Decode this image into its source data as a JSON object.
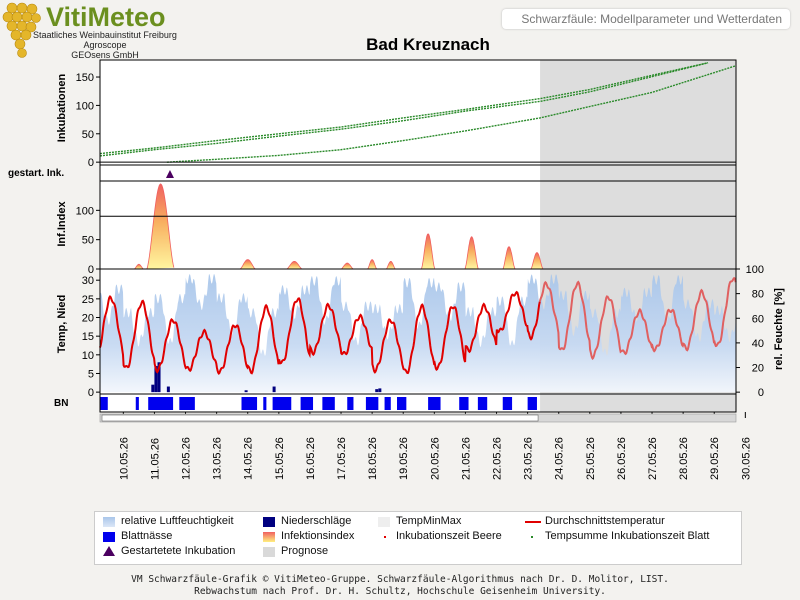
{
  "header": {
    "brand": "VitiMeteo",
    "org_lines": [
      "Staatliches Weinbauinstitut Freiburg",
      "Agroscope",
      "GEOsens GmbH"
    ],
    "subtitle": "Schwarzfäule: Modellparameter und Wetterdaten",
    "title": "Bad Kreuznach"
  },
  "footer": {
    "line1": "VM Schwarzfäule-Grafik © VitiMeteo-Gruppe. Schwarzfäule-Algorithmus nach Dr. D. Molitor, LIST.",
    "line2": "Rebwachstum nach Prof. Dr. H. Schultz, Hochschule Geisenheim University."
  },
  "colors": {
    "humidity": "#a9c6ea",
    "rain": "#000080",
    "temp": "#e00000",
    "temp_forecast": "#e06060",
    "incubation": "#2a8a2a",
    "leafwet": "#0000ee",
    "infection_top": "#f06060",
    "infection_bottom": "#fff080",
    "forecast": "#d9d9d9",
    "marker": "#4b0060"
  },
  "legend": [
    {
      "label": "relative Luftfeuchtigkeit",
      "icon": "humidity-swatch"
    },
    {
      "label": "Niederschläge",
      "icon": "rain-swatch"
    },
    {
      "label": "TempMinMax",
      "icon": "tempminmax-swatch"
    },
    {
      "label": "Durchschnittstemperatur",
      "icon": "temp-line"
    },
    {
      "label": "Blattnässe",
      "icon": "leafwet-swatch"
    },
    {
      "label": "Infektionsindex",
      "icon": "infection-swatch"
    },
    {
      "label": "Inkubationszeit Beere",
      "icon": "dot-red"
    },
    {
      "label": "Tempsumme Inkubationszeit Blatt",
      "icon": "dot-green"
    },
    {
      "label": "Gestartetete Inkubation",
      "icon": "triangle-marker"
    },
    {
      "label": "Prognose",
      "icon": "forecast-swatch"
    }
  ],
  "chart_data": {
    "type": "line",
    "dates": [
      "10.05.26",
      "11.05.26",
      "12.05.26",
      "13.05.26",
      "14.05.26",
      "15.05.26",
      "16.05.26",
      "17.05.26",
      "18.05.26",
      "19.05.26",
      "20.05.26",
      "21.05.26",
      "22.05.26",
      "23.05.26",
      "24.05.26",
      "25.05.26",
      "26.05.26",
      "27.05.26",
      "28.05.26",
      "29.05.26",
      "30.05.26"
    ],
    "x_range": [
      9.25,
      29.7
    ],
    "forecast_start": 23.4,
    "panels": {
      "incubation": {
        "ylabel": "Inkubationen",
        "yticks": [
          0,
          50,
          100,
          150
        ],
        "ylim": [
          -5,
          180
        ],
        "series": [
          {
            "name": "upper",
            "x": [
              9.25,
              11,
              13,
              15,
              17,
              19,
              21,
              23.4,
              25,
              27,
              28.8
            ],
            "y": [
              15,
              25,
              38,
              50,
              62,
              78,
              93,
              112,
              128,
              153,
              175
            ]
          },
          {
            "name": "middle",
            "x": [
              9.25,
              11,
              13,
              15,
              17,
              19,
              21,
              23.4,
              25,
              26.8,
              28.8
            ],
            "y": [
              11,
              22,
              33,
              46,
              58,
              73,
              90,
              107,
              124,
              148,
              175
            ]
          },
          {
            "name": "lower",
            "x": [
              11.4,
              13,
              15,
              17,
              19,
              21,
              23.4,
              25,
              27,
              29.7
            ],
            "y": [
              0,
              5,
              12,
              22,
              38,
              55,
              78,
              98,
              123,
              170
            ]
          }
        ]
      },
      "started": {
        "ylabel": "gestart. Ink.",
        "markers": [
          11.5
        ]
      },
      "infection": {
        "ylabel": "Inf.Index",
        "yticks": [
          0,
          50,
          100
        ],
        "ylim": [
          0,
          150
        ],
        "threshold": 90,
        "peaks": [
          {
            "x": 11.2,
            "y": 145,
            "w": 0.45
          },
          {
            "x": 10.5,
            "y": 8,
            "w": 0.15
          },
          {
            "x": 14.0,
            "y": 16,
            "w": 0.25
          },
          {
            "x": 15.5,
            "y": 13,
            "w": 0.25
          },
          {
            "x": 17.2,
            "y": 10,
            "w": 0.2
          },
          {
            "x": 18.0,
            "y": 16,
            "w": 0.15
          },
          {
            "x": 18.6,
            "y": 13,
            "w": 0.15
          },
          {
            "x": 19.8,
            "y": 60,
            "w": 0.22
          },
          {
            "x": 21.2,
            "y": 55,
            "w": 0.22
          },
          {
            "x": 22.4,
            "y": 38,
            "w": 0.2
          },
          {
            "x": 23.3,
            "y": 28,
            "w": 0.2
          }
        ]
      },
      "weather": {
        "ylabel_left": "Temp, Nied",
        "ylabel_right": "rel. Feuchte [%]",
        "yticks_left": [
          0,
          5,
          10,
          15,
          20,
          25,
          30
        ],
        "yticks_right": [
          0,
          20,
          40,
          60,
          80,
          100
        ],
        "ylim_left": [
          -0.5,
          33
        ],
        "ylim_right": [
          -1.5,
          100
        ],
        "rain": [
          {
            "x": 11.0,
            "y": 7
          },
          {
            "x": 11.1,
            "y": 8
          },
          {
            "x": 10.9,
            "y": 2
          },
          {
            "x": 11.4,
            "y": 1.5
          },
          {
            "x": 14.8,
            "y": 1.5
          },
          {
            "x": 13.9,
            "y": 0.5
          },
          {
            "x": 18.1,
            "y": 0.8
          },
          {
            "x": 18.2,
            "y": 1
          }
        ]
      },
      "leafwet": {
        "ylabel": "BN",
        "blocks": [
          [
            9.25,
            9.5
          ],
          [
            10.4,
            10.5
          ],
          [
            10.8,
            11.6
          ],
          [
            11.8,
            12.3
          ],
          [
            13.8,
            14.3
          ],
          [
            14.5,
            14.6
          ],
          [
            14.8,
            15.4
          ],
          [
            15.7,
            16.1
          ],
          [
            16.4,
            16.8
          ],
          [
            17.2,
            17.4
          ],
          [
            17.8,
            18.2
          ],
          [
            18.4,
            18.6
          ],
          [
            18.8,
            19.1
          ],
          [
            19.8,
            20.2
          ],
          [
            20.8,
            21.1
          ],
          [
            21.4,
            21.7
          ],
          [
            22.2,
            22.5
          ],
          [
            23.0,
            23.3
          ]
        ]
      }
    }
  }
}
